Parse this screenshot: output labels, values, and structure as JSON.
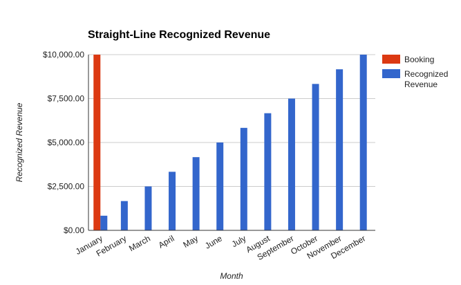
{
  "colors": {
    "booking": "#dc3912",
    "recognized": "#3366cc",
    "grid": "#cccccc",
    "axis": "#333333"
  },
  "chart_data": {
    "type": "bar",
    "title": "Straight-Line Recognized Revenue",
    "xlabel": "Month",
    "ylabel": "Recognized Revenue",
    "ylim": [
      0,
      10000
    ],
    "yticks": [
      0,
      2500,
      5000,
      7500,
      10000
    ],
    "ytick_labels": [
      "$0.00",
      "$2,500.00",
      "$5,000.00",
      "$7,500.00",
      "$10,000.00"
    ],
    "grid": true,
    "legend_position": "right",
    "categories": [
      "January",
      "February",
      "March",
      "April",
      "May",
      "June",
      "July",
      "August",
      "September",
      "October",
      "November",
      "December"
    ],
    "series": [
      {
        "name": "Booking",
        "color": "#dc3912",
        "values": [
          10000,
          null,
          null,
          null,
          null,
          null,
          null,
          null,
          null,
          null,
          null,
          null
        ]
      },
      {
        "name": "Recognized Revenue",
        "color": "#3366cc",
        "legend_lines": [
          "Recognized",
          "Revenue"
        ],
        "values": [
          833.33,
          1666.67,
          2500,
          3333.33,
          4166.67,
          5000,
          5833.33,
          6666.67,
          7500,
          8333.33,
          9166.67,
          10000
        ]
      }
    ]
  }
}
